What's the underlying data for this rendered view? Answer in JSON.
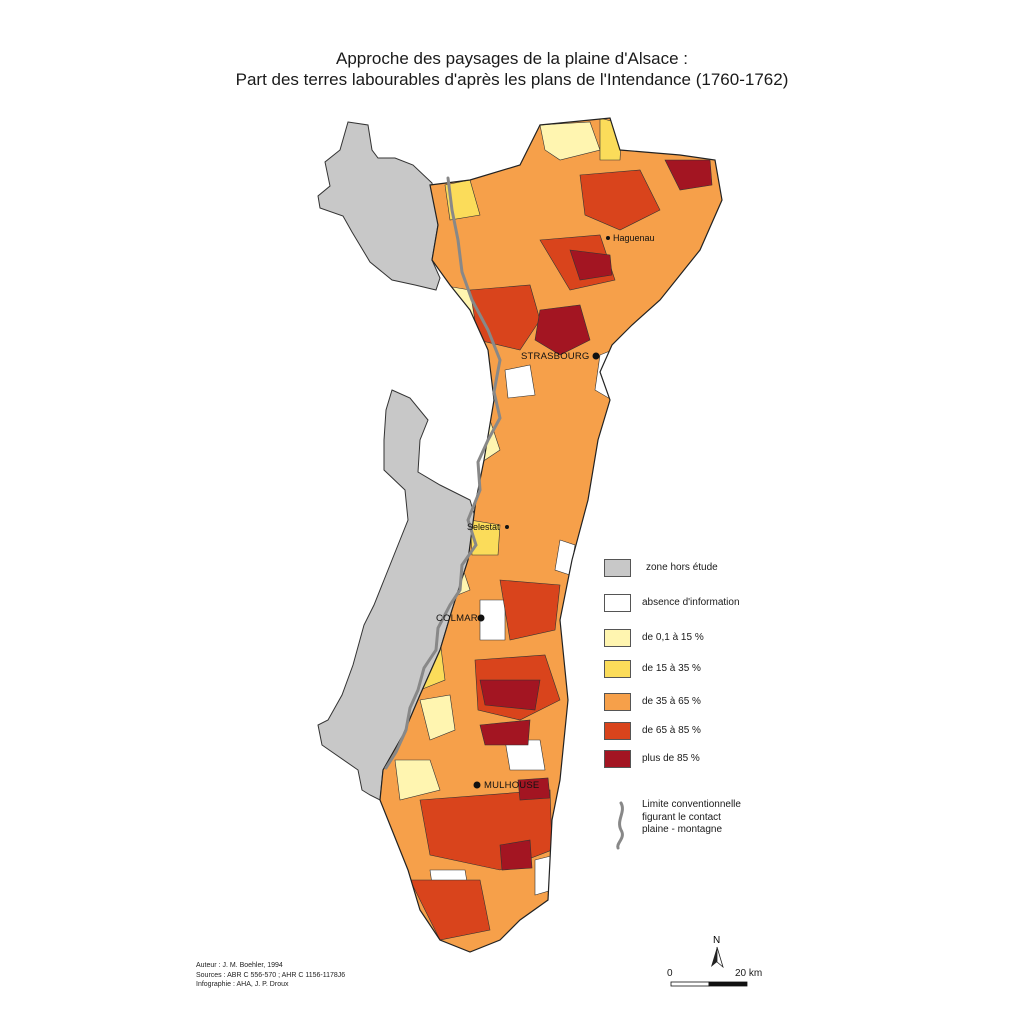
{
  "title": {
    "line1": "Approche des paysages de la plaine d'Alsace :",
    "line2": "Part des terres labourables d'après les plans de l'Intendance (1760-1762)"
  },
  "towns": {
    "haguenau": "Haguenau",
    "strasbourg": "STRASBOURG",
    "selestat": "Selestat",
    "colmar": "COLMAR",
    "mulhouse": "MULHOUSE"
  },
  "legend": {
    "items": [
      {
        "label": "zone hors étude",
        "color": "#c8c8c8"
      },
      {
        "label": "absence d'information",
        "color": "#ffffff"
      },
      {
        "label": "de 0,1 à 15 %",
        "color": "#fff5b0"
      },
      {
        "label": "de 15 à 35 %",
        "color": "#fbdc5a"
      },
      {
        "label": "de 35 à 65 %",
        "color": "#f6a04a"
      },
      {
        "label": "de 65 à 85 %",
        "color": "#d9441c"
      },
      {
        "label": "plus de 85 %",
        "color": "#a31522"
      }
    ],
    "limit_line": {
      "line1": "Limite conventionnelle",
      "line2": "figurant le contact",
      "line3": "plaine - montagne",
      "color": "#888888"
    }
  },
  "credits": {
    "author": "Auteur : J. M. Boehler, 1994",
    "sources": "Sources : ABR C 556-570 ; AHR C 1156-1178J6",
    "infographie": "Infographie : AHA, J. P. Droux"
  },
  "scale": {
    "start": "0",
    "end": "20 km",
    "north": "N"
  }
}
